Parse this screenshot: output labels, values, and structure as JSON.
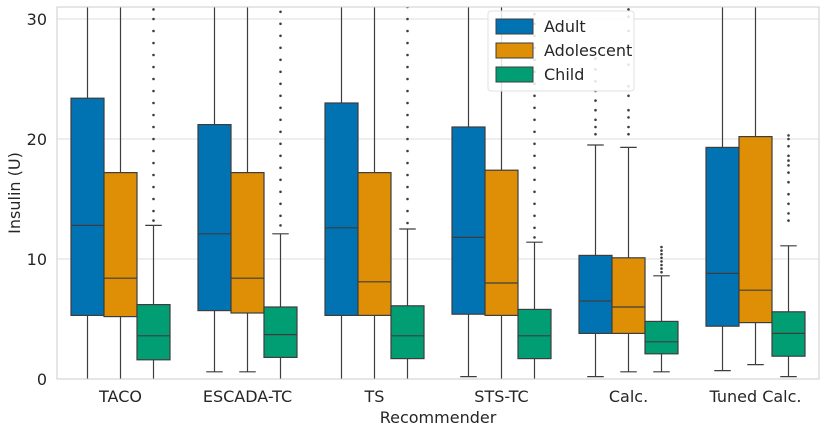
{
  "chart_data": {
    "type": "box",
    "title": "",
    "xlabel": "Recommender",
    "ylabel": "Insulin (U)",
    "ylim": [
      0,
      31
    ],
    "yticks": [
      0,
      10,
      20,
      30
    ],
    "grid": true,
    "legend_position": "top-center",
    "categories": [
      "TACO",
      "ESCADA-TC",
      "TS",
      "STS-TC",
      "Calc.",
      "Tuned Calc."
    ],
    "series": [
      {
        "name": "Adult",
        "color": "#0173b2",
        "boxes": [
          {
            "q1": 5.3,
            "median": 12.8,
            "q3": 23.4,
            "whisker_low": 0.0,
            "whisker_high": 31.0,
            "outliers": []
          },
          {
            "q1": 5.7,
            "median": 12.1,
            "q3": 21.2,
            "whisker_low": 0.6,
            "whisker_high": 31.0,
            "outliers": []
          },
          {
            "q1": 5.3,
            "median": 12.6,
            "q3": 23.0,
            "whisker_low": 0.0,
            "whisker_high": 31.0,
            "outliers": []
          },
          {
            "q1": 5.4,
            "median": 11.8,
            "q3": 21.0,
            "whisker_low": 0.2,
            "whisker_high": 31.0,
            "outliers": []
          },
          {
            "q1": 3.8,
            "median": 6.5,
            "q3": 10.3,
            "whisker_low": 0.2,
            "whisker_high": 19.5,
            "outliers": [
              20.4,
              21.0,
              21.6,
              22.4,
              23.2,
              24.0,
              24.8,
              25.8,
              26.7
            ]
          },
          {
            "q1": 4.4,
            "median": 8.8,
            "q3": 19.3,
            "whisker_low": 0.7,
            "whisker_high": 31.0,
            "outliers": []
          }
        ]
      },
      {
        "name": "Adolescent",
        "color": "#de8f05",
        "boxes": [
          {
            "q1": 5.2,
            "median": 8.4,
            "q3": 17.2,
            "whisker_low": 0.0,
            "whisker_high": 31.0,
            "outliers": []
          },
          {
            "q1": 5.5,
            "median": 8.4,
            "q3": 17.2,
            "whisker_low": 0.6,
            "whisker_high": 31.0,
            "outliers": []
          },
          {
            "q1": 5.3,
            "median": 8.1,
            "q3": 17.2,
            "whisker_low": 0.0,
            "whisker_high": 31.0,
            "outliers": []
          },
          {
            "q1": 5.3,
            "median": 8.0,
            "q3": 17.4,
            "whisker_low": 0.0,
            "whisker_high": 31.0,
            "outliers": []
          },
          {
            "q1": 3.8,
            "median": 6.0,
            "q3": 10.1,
            "whisker_low": 0.6,
            "whisker_high": 19.3,
            "outliers": [
              20.4,
              21.0,
              21.8,
              22.4,
              23.6,
              24.4,
              26.2,
              27.8,
              29.0,
              30.2,
              30.8
            ]
          },
          {
            "q1": 4.7,
            "median": 7.4,
            "q3": 20.2,
            "whisker_low": 1.2,
            "whisker_high": 31.0,
            "outliers": []
          }
        ]
      },
      {
        "name": "Child",
        "color": "#029e73",
        "boxes": [
          {
            "q1": 1.6,
            "median": 3.6,
            "q3": 6.2,
            "whisker_low": 0.0,
            "whisker_high": 12.8,
            "outliers": [
              13.2,
              14.0,
              15.0,
              16.0,
              17.0,
              18.0,
              19.0,
              20.0,
              21.0,
              22.0,
              23.0,
              24.0,
              25.0,
              26.0,
              27.0,
              28.0,
              29.0,
              30.0,
              30.8
            ]
          },
          {
            "q1": 1.8,
            "median": 3.7,
            "q3": 6.0,
            "whisker_low": 0.0,
            "whisker_high": 12.1,
            "outliers": [
              12.8,
              13.6,
              14.6,
              15.6,
              16.6,
              17.6,
              18.6,
              19.6,
              20.6,
              21.6,
              22.6,
              23.6,
              24.6,
              25.6,
              26.6,
              27.6,
              28.6,
              29.6,
              30.6
            ]
          },
          {
            "q1": 1.7,
            "median": 3.6,
            "q3": 6.1,
            "whisker_low": 0.0,
            "whisker_high": 12.5,
            "outliers": [
              13.0,
              14.0,
              15.0,
              16.0,
              17.0,
              18.0,
              19.0,
              20.0,
              21.0,
              22.0,
              23.0,
              24.0,
              25.0,
              26.0,
              27.0,
              28.0,
              29.0,
              30.0,
              31.0
            ]
          },
          {
            "q1": 1.7,
            "median": 3.6,
            "q3": 5.8,
            "whisker_low": 0.0,
            "whisker_high": 11.4,
            "outliers": [
              11.8,
              12.6,
              13.6,
              14.6,
              15.6,
              16.6,
              17.6,
              18.6,
              19.6,
              20.6,
              21.6,
              22.6,
              23.6,
              24.6,
              25.6,
              26.6,
              27.6,
              28.6,
              29.6,
              30.4
            ]
          },
          {
            "q1": 2.1,
            "median": 3.1,
            "q3": 4.8,
            "whisker_low": 0.6,
            "whisker_high": 8.6,
            "outliers": [
              8.9,
              9.2,
              9.5,
              9.8,
              10.1,
              10.4,
              10.7,
              11.0
            ]
          },
          {
            "q1": 1.9,
            "median": 3.8,
            "q3": 5.6,
            "whisker_low": 0.2,
            "whisker_high": 11.1,
            "outliers": [
              13.2,
              13.8,
              14.6,
              15.4,
              16.4,
              17.2,
              17.8,
              18.2,
              18.6,
              19.4,
              20.0,
              20.3
            ]
          }
        ]
      }
    ]
  }
}
